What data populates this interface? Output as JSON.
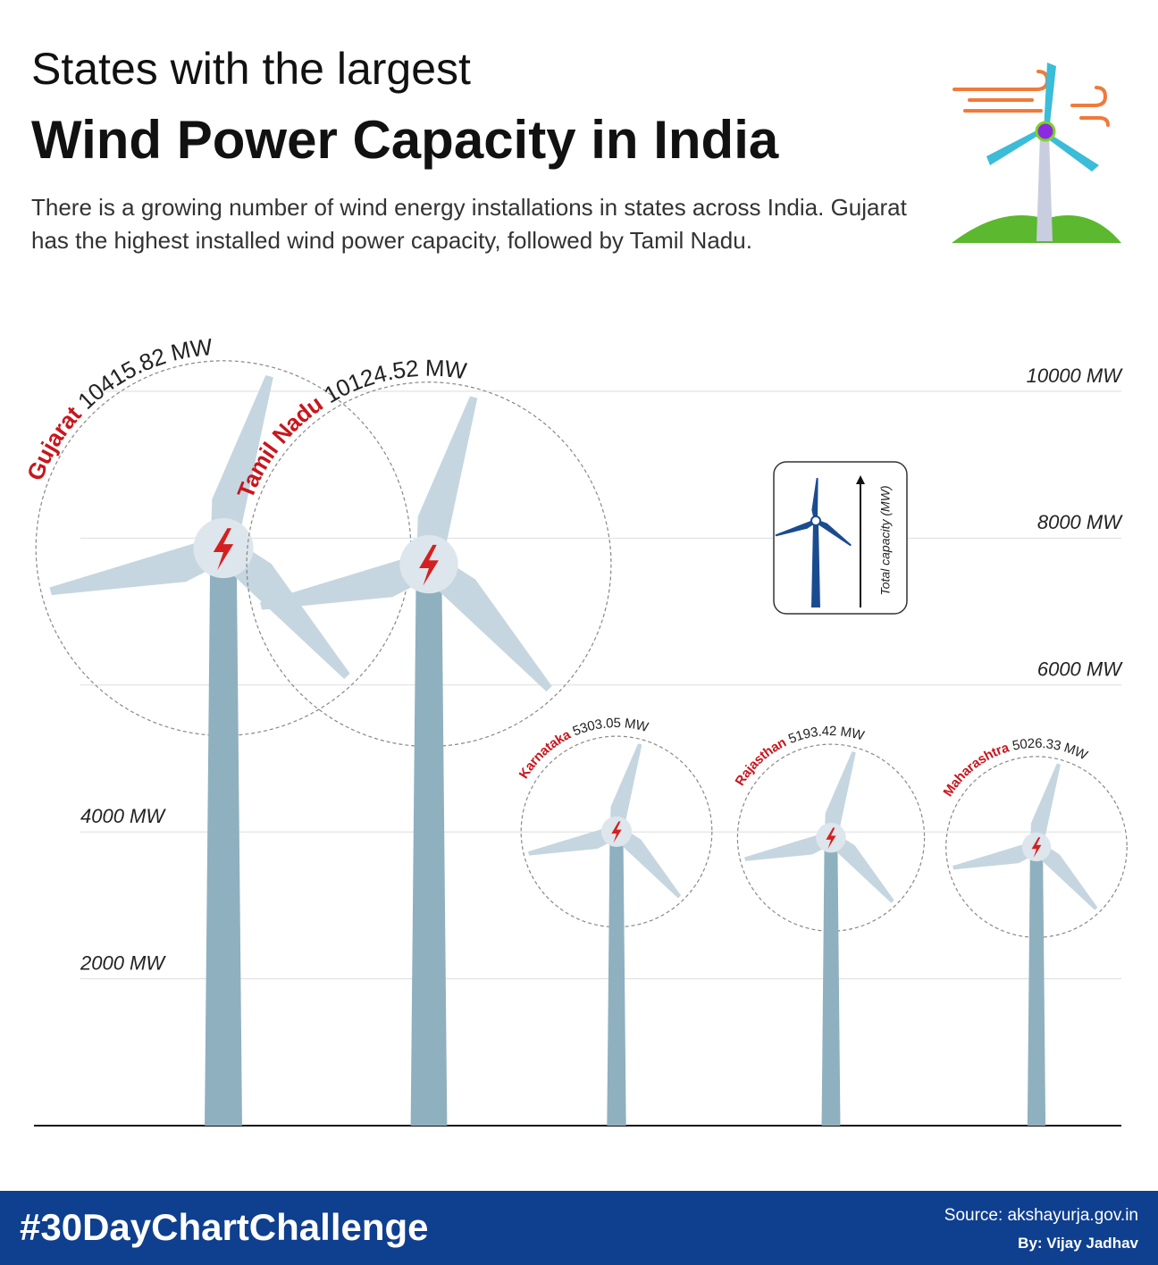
{
  "chart_data": {
    "type": "turbine",
    "title": [
      "States with the largest",
      "Wind Power Capacity in India"
    ],
    "subtitle": "There is a growing number of wind energy installations in states across India. Gujarat has the highest installed wind power capacity, followed by Tamil Nadu.",
    "categories": [
      "Gujarat",
      "Tamil Nadu",
      "Karnataka",
      "Rajasthan",
      "Maharashtra"
    ],
    "values": [
      10415.82,
      10124.52,
      5303.05,
      5193.42,
      5026.33
    ],
    "value_labels": [
      "10415.82 MW",
      "10124.52 MW",
      "5303.05 MW",
      "5193.42 MW",
      "5026.33 MW"
    ],
    "ylim": [
      0,
      10000
    ],
    "yticks": [
      {
        "value": 2000,
        "label": "2000 MW"
      },
      {
        "value": 4000,
        "label": "4000 MW"
      },
      {
        "value": 6000,
        "label": "6000 MW"
      },
      {
        "value": 8000,
        "label": "8000 MW"
      },
      {
        "value": 10000,
        "label": "10000 MW"
      }
    ],
    "grid": true,
    "color": "#8fb0bf",
    "legend_label": "Total capacity (MW)"
  },
  "footer": {
    "hashtag": "#30DayChartChallenge",
    "source": "Source: akshayurja.gov.in",
    "credit": "By: Vijay Jadhav"
  }
}
